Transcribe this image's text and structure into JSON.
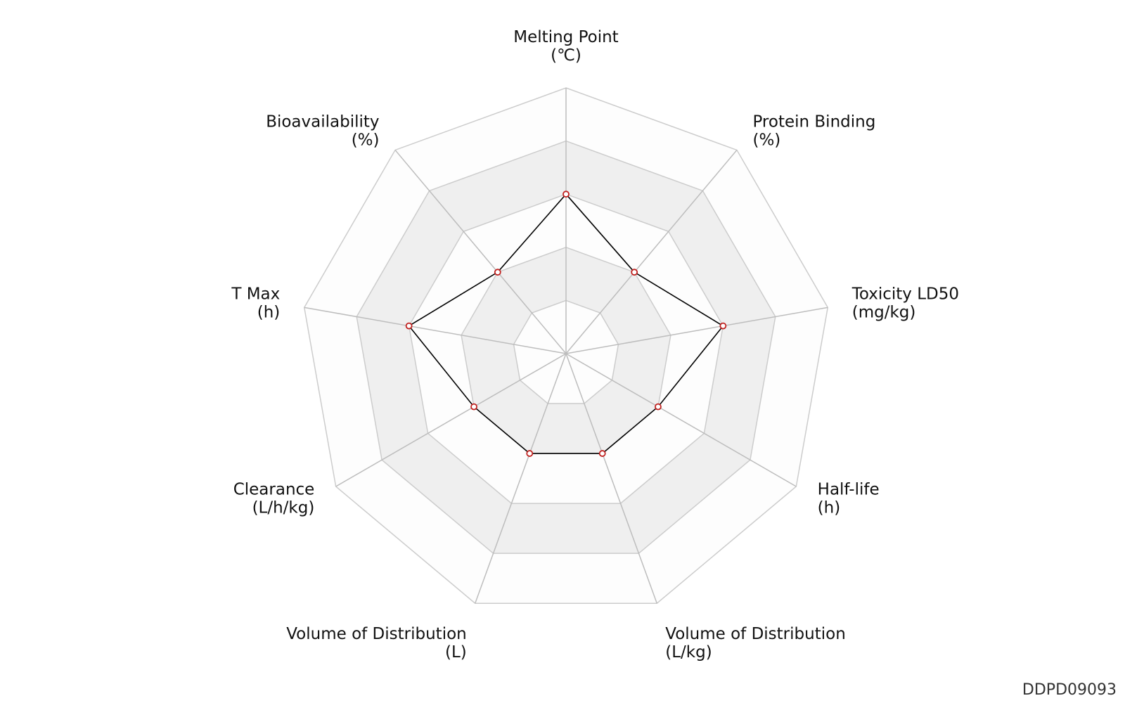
{
  "chart_data": {
    "type": "radar",
    "axes": [
      {
        "name": "Melting Point",
        "unit": "(℃)"
      },
      {
        "name": "Protein Binding",
        "unit": "(%)"
      },
      {
        "name": "Toxicity LD50",
        "unit": "(mg/kg)"
      },
      {
        "name": "Half-life",
        "unit": "(h)"
      },
      {
        "name": "Volume of Distribution",
        "unit": "(L/kg)"
      },
      {
        "name": "Volume of Distribution",
        "unit": "(L)"
      },
      {
        "name": "Clearance",
        "unit": "(L/h/kg)"
      },
      {
        "name": "T Max",
        "unit": "(h)"
      },
      {
        "name": "Bioavailability",
        "unit": "(%)"
      }
    ],
    "ring_count": 5,
    "alternating_band_fill": true,
    "series": [
      {
        "values": [
          0.6,
          0.4,
          0.6,
          0.4,
          0.4,
          0.4,
          0.4,
          0.6,
          0.4
        ]
      }
    ],
    "colors": {
      "line": "#000000",
      "marker_edge": "#c0201e",
      "ring": "#cccccc",
      "band": "#efefef"
    }
  },
  "id_label": "DDPD09093"
}
